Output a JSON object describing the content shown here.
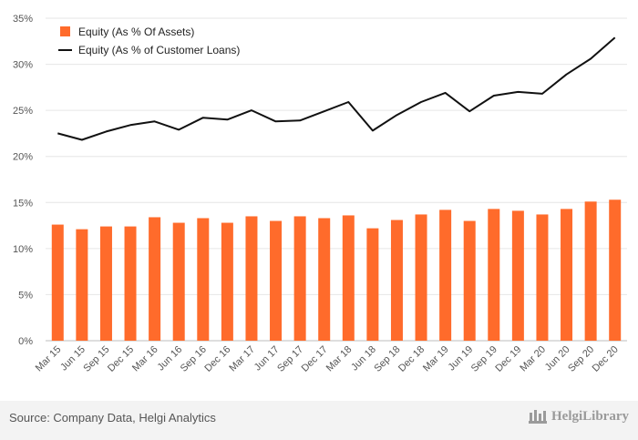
{
  "chart_data": {
    "type": "bar+line",
    "categories": [
      "Mar 15",
      "Jun 15",
      "Sep 15",
      "Dec 15",
      "Mar 16",
      "Jun 16",
      "Sep 16",
      "Dec 16",
      "Mar 17",
      "Jun 17",
      "Sep 17",
      "Dec 17",
      "Mar 18",
      "Jun 18",
      "Sep 18",
      "Dec 18",
      "Mar 19",
      "Jun 19",
      "Sep 19",
      "Dec 19",
      "Mar 20",
      "Jun 20",
      "Sep 20",
      "Dec 20"
    ],
    "series": [
      {
        "name": "Equity (As % Of Assets)",
        "type": "bar",
        "color": "#ff6b2b",
        "values": [
          12.6,
          12.1,
          12.4,
          12.4,
          13.4,
          12.8,
          13.3,
          12.8,
          13.5,
          13.0,
          13.5,
          13.3,
          13.6,
          12.2,
          13.1,
          13.7,
          14.2,
          13.0,
          14.3,
          14.1,
          13.7,
          14.3,
          15.1,
          15.3
        ]
      },
      {
        "name": "Equity (As % of Customer Loans)",
        "type": "line",
        "color": "#111111",
        "values": [
          22.5,
          21.8,
          22.7,
          23.4,
          23.8,
          22.9,
          24.2,
          24.0,
          25.0,
          23.8,
          23.9,
          24.9,
          25.9,
          22.8,
          24.5,
          25.9,
          26.9,
          24.9,
          26.6,
          27.0,
          26.8,
          28.9,
          30.6,
          32.9
        ]
      }
    ],
    "y_ticks": [
      "0%",
      "5%",
      "10%",
      "15%",
      "20%",
      "25%",
      "30%",
      "35%"
    ],
    "ylim": [
      0,
      35
    ],
    "grid": true,
    "legend_position": "top-left"
  },
  "footer": {
    "source": "Source: Company Data, Helgi Analytics",
    "brand": "HelgiLibrary"
  }
}
